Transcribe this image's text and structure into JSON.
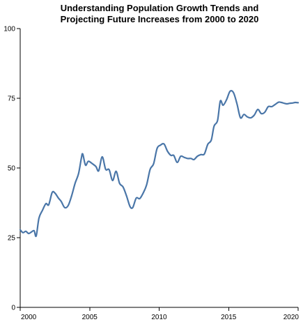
{
  "chart_data": {
    "type": "line",
    "title_lines": [
      "Understanding Population Growth Trends and",
      "Projecting Future Increases from 2000 to 2020"
    ],
    "xlabel": "",
    "ylabel": "",
    "xlim": [
      2000,
      2020
    ],
    "ylim": [
      0,
      100
    ],
    "x_ticks": [
      2000,
      2005,
      2010,
      2015,
      2020
    ],
    "y_ticks": [
      0,
      25,
      50,
      75,
      100
    ],
    "grid": false,
    "legend": "none",
    "series": [
      {
        "color": "#4a76a8",
        "points": [
          [
            2000.0,
            27.8
          ],
          [
            2000.2,
            26.8
          ],
          [
            2000.4,
            27.3
          ],
          [
            2000.6,
            26.5
          ],
          [
            2000.8,
            27.0
          ],
          [
            2001.0,
            27.5
          ],
          [
            2001.15,
            25.6
          ],
          [
            2001.35,
            32.0
          ],
          [
            2001.6,
            34.8
          ],
          [
            2001.85,
            37.2
          ],
          [
            2002.05,
            36.8
          ],
          [
            2002.3,
            41.2
          ],
          [
            2002.5,
            41.0
          ],
          [
            2002.75,
            39.2
          ],
          [
            2002.95,
            38.0
          ],
          [
            2003.2,
            35.8
          ],
          [
            2003.45,
            36.5
          ],
          [
            2003.7,
            40.0
          ],
          [
            2003.95,
            44.5
          ],
          [
            2004.2,
            48.0
          ],
          [
            2004.4,
            53.5
          ],
          [
            2004.5,
            55.0
          ],
          [
            2004.7,
            51.0
          ],
          [
            2004.9,
            52.4
          ],
          [
            2005.2,
            51.5
          ],
          [
            2005.45,
            50.5
          ],
          [
            2005.65,
            49.0
          ],
          [
            2005.9,
            54.0
          ],
          [
            2006.15,
            49.5
          ],
          [
            2006.4,
            49.4
          ],
          [
            2006.65,
            45.5
          ],
          [
            2006.9,
            48.8
          ],
          [
            2007.15,
            44.5
          ],
          [
            2007.4,
            43.2
          ],
          [
            2007.65,
            40.0
          ],
          [
            2007.9,
            36.2
          ],
          [
            2008.1,
            35.8
          ],
          [
            2008.35,
            39.2
          ],
          [
            2008.6,
            39.0
          ],
          [
            2008.85,
            41.0
          ],
          [
            2009.1,
            44.0
          ],
          [
            2009.35,
            49.5
          ],
          [
            2009.6,
            51.5
          ],
          [
            2009.85,
            57.0
          ],
          [
            2010.1,
            58.2
          ],
          [
            2010.35,
            58.6
          ],
          [
            2010.6,
            56.0
          ],
          [
            2010.85,
            54.5
          ],
          [
            2011.05,
            54.5
          ],
          [
            2011.3,
            52.0
          ],
          [
            2011.55,
            54.2
          ],
          [
            2011.8,
            53.8
          ],
          [
            2012.05,
            53.4
          ],
          [
            2012.3,
            53.4
          ],
          [
            2012.5,
            53.0
          ],
          [
            2012.75,
            54.2
          ],
          [
            2013.0,
            54.8
          ],
          [
            2013.25,
            55.0
          ],
          [
            2013.5,
            58.5
          ],
          [
            2013.75,
            60.0
          ],
          [
            2013.95,
            65.0
          ],
          [
            2014.2,
            67.0
          ],
          [
            2014.4,
            74.0
          ],
          [
            2014.6,
            72.5
          ],
          [
            2014.85,
            74.5
          ],
          [
            2015.1,
            77.5
          ],
          [
            2015.35,
            77.0
          ],
          [
            2015.6,
            73.0
          ],
          [
            2015.85,
            68.0
          ],
          [
            2016.1,
            69.2
          ],
          [
            2016.35,
            68.3
          ],
          [
            2016.6,
            68.0
          ],
          [
            2016.85,
            69.0
          ],
          [
            2017.1,
            71.0
          ],
          [
            2017.35,
            69.5
          ],
          [
            2017.6,
            70.0
          ],
          [
            2017.85,
            72.0
          ],
          [
            2018.1,
            72.0
          ],
          [
            2018.35,
            72.8
          ],
          [
            2018.6,
            73.6
          ],
          [
            2018.8,
            73.5
          ],
          [
            2019.0,
            73.2
          ],
          [
            2019.2,
            73.0
          ],
          [
            2019.4,
            73.2
          ],
          [
            2019.6,
            73.3
          ],
          [
            2019.8,
            73.5
          ],
          [
            2020.0,
            73.4
          ]
        ]
      }
    ]
  }
}
